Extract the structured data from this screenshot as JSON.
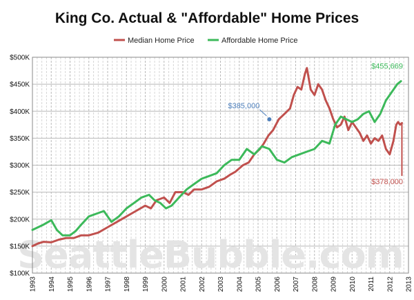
{
  "chart_data": {
    "type": "line",
    "title": "King Co. Actual & \"Affordable\" Home Prices",
    "xlabel": "",
    "ylabel": "",
    "xlim": [
      1993,
      2013
    ],
    "ylim": [
      100000,
      500000
    ],
    "x_ticks": [
      "1993",
      "1994",
      "1995",
      "1996",
      "1997",
      "1998",
      "1999",
      "2000",
      "2001",
      "2002",
      "2003",
      "2004",
      "2005",
      "2006",
      "2007",
      "2008",
      "2009",
      "2010",
      "2011",
      "2012",
      "2013"
    ],
    "y_ticks": [
      "$100K",
      "$150K",
      "$200K",
      "$250K",
      "$300K",
      "$350K",
      "$400K",
      "$450K",
      "$500K"
    ],
    "grid": true,
    "legend_position": "top",
    "watermark": "SeattleBubble.com",
    "series": [
      {
        "name": "Median Home Price",
        "color": "#c0504d",
        "x": [
          1993.0,
          1993.3,
          1993.6,
          1994.0,
          1994.4,
          1994.8,
          1995.2,
          1995.6,
          1996.0,
          1996.5,
          1997.0,
          1997.5,
          1998.0,
          1998.5,
          1999.0,
          1999.3,
          1999.6,
          2000.0,
          2000.3,
          2000.6,
          2001.0,
          2001.3,
          2001.6,
          2002.0,
          2002.4,
          2002.8,
          2003.2,
          2003.5,
          2003.8,
          2004.2,
          2004.5,
          2004.8,
          2005.1,
          2005.3,
          2005.55,
          2005.8,
          2006.1,
          2006.4,
          2006.7,
          2006.9,
          2007.1,
          2007.3,
          2007.5,
          2007.6,
          2007.8,
          2008.0,
          2008.2,
          2008.4,
          2008.6,
          2008.8,
          2009.0,
          2009.2,
          2009.4,
          2009.6,
          2009.8,
          2010.0,
          2010.2,
          2010.4,
          2010.6,
          2010.8,
          2011.0,
          2011.2,
          2011.4,
          2011.6,
          2011.8,
          2012.0,
          2012.2,
          2012.35,
          2012.45,
          2012.55,
          2012.65
        ],
        "values": [
          150000,
          155000,
          158000,
          157000,
          162000,
          165000,
          165000,
          170000,
          170000,
          175000,
          185000,
          195000,
          205000,
          215000,
          225000,
          220000,
          235000,
          240000,
          230000,
          250000,
          250000,
          245000,
          255000,
          255000,
          260000,
          270000,
          275000,
          282000,
          288000,
          300000,
          305000,
          320000,
          330000,
          340000,
          355000,
          365000,
          385000,
          395000,
          405000,
          430000,
          445000,
          440000,
          470000,
          480000,
          440000,
          430000,
          450000,
          440000,
          420000,
          405000,
          385000,
          370000,
          375000,
          390000,
          365000,
          380000,
          370000,
          360000,
          345000,
          355000,
          340000,
          350000,
          345000,
          355000,
          330000,
          320000,
          345000,
          375000,
          380000,
          375000,
          378000
        ],
        "end_label": "$378,000"
      },
      {
        "name": "Affordable Home Price",
        "color": "#3cb95a",
        "x": [
          1993.0,
          1993.3,
          1993.6,
          1994.0,
          1994.3,
          1994.6,
          1995.0,
          1995.3,
          1995.6,
          1996.0,
          1996.4,
          1996.8,
          1997.2,
          1997.6,
          1998.0,
          1998.4,
          1998.8,
          1999.2,
          1999.5,
          1999.8,
          2000.1,
          2000.4,
          2000.8,
          2001.2,
          2001.6,
          2002.0,
          2002.4,
          2002.8,
          2003.2,
          2003.6,
          2004.0,
          2004.4,
          2004.8,
          2005.2,
          2005.6,
          2006.0,
          2006.4,
          2006.8,
          2007.2,
          2007.6,
          2008.0,
          2008.4,
          2008.8,
          2009.1,
          2009.4,
          2009.7,
          2010.0,
          2010.3,
          2010.6,
          2010.9,
          2011.2,
          2011.5,
          2011.8,
          2012.1,
          2012.4,
          2012.6
        ],
        "values": [
          180000,
          185000,
          190000,
          198000,
          180000,
          170000,
          170000,
          178000,
          190000,
          205000,
          210000,
          215000,
          195000,
          205000,
          220000,
          230000,
          240000,
          245000,
          235000,
          230000,
          220000,
          225000,
          240000,
          255000,
          265000,
          275000,
          280000,
          285000,
          300000,
          310000,
          310000,
          330000,
          320000,
          335000,
          330000,
          310000,
          305000,
          315000,
          320000,
          325000,
          330000,
          345000,
          340000,
          375000,
          390000,
          385000,
          380000,
          385000,
          395000,
          400000,
          380000,
          395000,
          420000,
          435000,
          450000,
          455669
        ],
        "end_label": "$455,669"
      }
    ],
    "annotations": [
      {
        "label": "$385,000",
        "x": 2005.6,
        "y": 385000,
        "color": "#4f81bd"
      }
    ]
  }
}
